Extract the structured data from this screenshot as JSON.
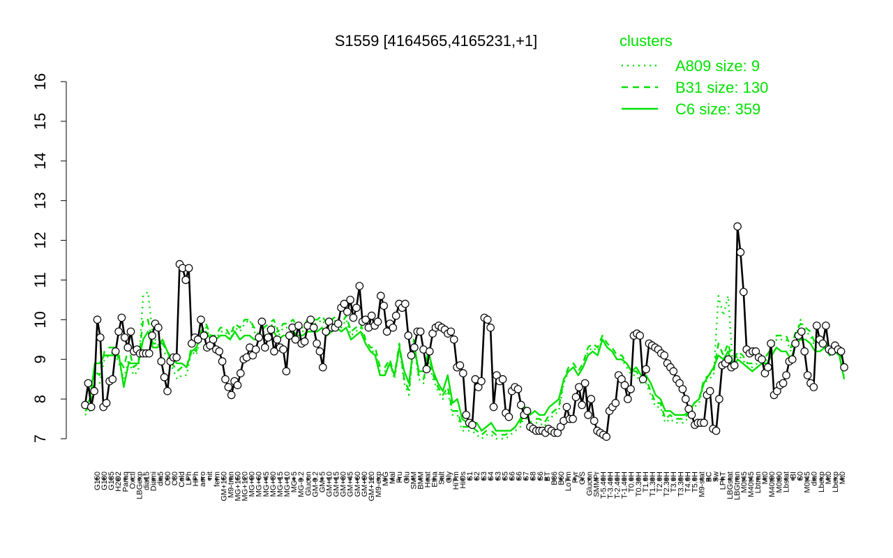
{
  "chart_data": {
    "type": "line",
    "title": "S1559 [4164565,4165231,+1]",
    "xlabel": "",
    "ylabel": "",
    "ylim": [
      7,
      16
    ],
    "yticks": [
      7,
      8,
      9,
      10,
      11,
      12,
      13,
      14,
      15,
      16
    ],
    "grid": false,
    "legend_placement": "top-right",
    "legend": {
      "title": "clusters",
      "entries": [
        {
          "label": "A809 size: 9",
          "style": "dotted"
        },
        {
          "label": "B31 size: 130",
          "style": "dashed"
        },
        {
          "label": "C6 size: 359",
          "style": "solid"
        }
      ]
    },
    "x_tick_labels": [
      "G150",
      "G180",
      "G135",
      "H2O2",
      "Paraq",
      "Oxctl",
      "LBGexp",
      "dia15",
      "Diami",
      "dia5",
      "C90",
      "C30",
      "Cold",
      "LPh",
      "HPh",
      "aero",
      "nit",
      "ferm",
      "GM+150",
      "M9-tran",
      "MG+150",
      "MG+120",
      "MG+90",
      "MG+60",
      "MG+45",
      "MG+30",
      "MG+15",
      "MG+10",
      "MG+5",
      "MG-0.2",
      "Glucon",
      "GM-0.2",
      "GM+5",
      "GM+10",
      "GM+15",
      "GM+30",
      "GM+45",
      "GM+60",
      "GM+90",
      "GM+120",
      "M9-exp",
      "M/G",
      "Mal",
      "Fru",
      "Glu",
      "SMM",
      "BMM",
      "Heat",
      "Etha",
      "Salt",
      "Gly",
      "HiTm",
      "HiOs",
      "S1",
      "S2",
      "S3",
      "S4",
      "S3",
      "S5",
      "S6",
      "S6",
      "S7",
      "S8",
      "S6",
      "BT",
      "B36",
      "B60",
      "LoTm",
      "Pyr",
      "G/S",
      "Glucon",
      "SMMPr",
      "T-5.40H",
      "T-3.40H",
      "T-2.40H",
      "T-1.40H",
      "T0.0H",
      "T0.30H",
      "T1.0H",
      "T1.30H",
      "T2.0H",
      "T2.30H",
      "T3.0H",
      "T3.30H",
      "T4.0H",
      "T5.0H",
      "M9-stat",
      "BC",
      "Sw",
      "LPhT",
      "LBGstat",
      "LBGtran",
      "M0t45",
      "M40t45",
      "Lbtran",
      "Mt0",
      "M40t90",
      "M0t90",
      "Lbstat",
      "BI",
      "S0",
      "M0t45",
      "dia0",
      "Lbexp",
      "Mt0",
      "Lbexp",
      "Mt0"
    ],
    "series": [
      {
        "name": "C6 size: 359",
        "style": "solid",
        "values": [
          7.8,
          8.0,
          8.9,
          8.9,
          9.1,
          9.1,
          9.1,
          9.1,
          8.3,
          8.9,
          8.9,
          8.9,
          9.5,
          9.7,
          9.3,
          9.3,
          9.5,
          9.2,
          9.0,
          8.9,
          8.9,
          8.8,
          9.2,
          9.3,
          9.6,
          9.7,
          9.5,
          9.5,
          9.6,
          9.6,
          9.5,
          9.7,
          9.5,
          9.6,
          9.6,
          9.5,
          9.5,
          9.6,
          9.6,
          9.7,
          9.5,
          9.6,
          9.6,
          9.7,
          9.6,
          9.6,
          9.7,
          9.7,
          9.7,
          9.8,
          9.6,
          9.7,
          9.8,
          9.7,
          9.8,
          9.5,
          9.6,
          9.7,
          9.4,
          9.2,
          9.1,
          8.6,
          8.6,
          8.9,
          8.6,
          9.3,
          8.7,
          8.4,
          9.4,
          8.7,
          8.7,
          9.2,
          8.7,
          8.4,
          8.2,
          8.6,
          7.9,
          8.0,
          7.5,
          7.4,
          7.4,
          7.4,
          7.2,
          7.3,
          7.4,
          7.2,
          7.2,
          7.2,
          7.2,
          7.3,
          7.5,
          7.8,
          7.6,
          7.7,
          7.6,
          7.6,
          7.8,
          7.9,
          8.0,
          8.5,
          8.7,
          8.8,
          8.6,
          8.8,
          9.1,
          9.2,
          9.1,
          9.5,
          9.3,
          9.2,
          9.0,
          9.0,
          8.9,
          8.7,
          8.8,
          8.6,
          8.6,
          8.4,
          8.1,
          8.0,
          7.7,
          7.7,
          7.6,
          7.6,
          7.6,
          7.7,
          7.9,
          8.0,
          8.4,
          8.6,
          8.8,
          9.1,
          9.0,
          9.2,
          8.8,
          9.0,
          8.9,
          8.8,
          8.7,
          8.8,
          8.9,
          8.9,
          9.1,
          9.3,
          9.2,
          9.2,
          9.0,
          9.4,
          9.5,
          9.5,
          9.4,
          9.2,
          9.2,
          9.3,
          9.1,
          9.2,
          9.1,
          8.5
        ]
      },
      {
        "name": "B31 size: 130",
        "style": "dashed",
        "values": [
          7.7,
          7.8,
          8.7,
          8.6,
          9.2,
          9.3,
          9.3,
          9.0,
          8.8,
          9.3,
          8.8,
          8.9,
          10.0,
          10.0,
          9.4,
          9.4,
          9.4,
          9.2,
          8.9,
          8.7,
          8.8,
          8.8,
          9.3,
          9.2,
          9.7,
          9.9,
          9.6,
          9.6,
          9.8,
          9.8,
          9.6,
          9.9,
          9.8,
          10.0,
          10.0,
          9.8,
          9.6,
          9.8,
          9.9,
          10.0,
          9.7,
          9.9,
          9.9,
          10.0,
          9.8,
          9.8,
          10.0,
          10.0,
          10.0,
          10.1,
          9.9,
          10.0,
          10.1,
          9.9,
          10.1,
          9.7,
          9.8,
          9.9,
          9.5,
          9.3,
          9.3,
          8.8,
          8.8,
          9.0,
          8.6,
          9.4,
          8.5,
          8.2,
          9.5,
          8.6,
          8.5,
          9.1,
          8.6,
          8.3,
          8.1,
          8.3,
          7.7,
          7.7,
          7.3,
          7.3,
          7.3,
          7.2,
          7.1,
          7.2,
          7.2,
          7.1,
          7.1,
          7.1,
          7.2,
          7.3,
          7.4,
          7.7,
          7.4,
          7.5,
          7.5,
          7.4,
          7.6,
          7.7,
          7.8,
          8.5,
          8.8,
          8.9,
          8.7,
          8.9,
          9.3,
          9.4,
          9.3,
          9.6,
          9.4,
          9.3,
          9.1,
          9.1,
          8.9,
          8.7,
          8.7,
          8.5,
          8.5,
          8.2,
          7.9,
          7.9,
          7.5,
          7.6,
          7.5,
          7.5,
          7.5,
          7.7,
          7.9,
          8.0,
          8.5,
          8.6,
          8.7,
          9.4,
          9.1,
          9.4,
          8.9,
          9.2,
          9.1,
          8.9,
          8.9,
          9.0,
          9.0,
          9.1,
          9.3,
          9.6,
          9.6,
          9.6,
          9.3,
          9.7,
          9.9,
          9.8,
          9.7,
          9.4,
          9.4,
          9.5,
          9.2,
          9.3,
          9.2,
          8.7
        ]
      },
      {
        "name": "A809 size: 9",
        "style": "dotted",
        "values": [
          7.6,
          7.7,
          8.4,
          8.4,
          9.0,
          9.1,
          9.2,
          8.9,
          8.5,
          9.0,
          8.6,
          8.7,
          10.6,
          10.7,
          9.6,
          9.4,
          9.2,
          9.1,
          8.8,
          8.5,
          8.6,
          8.6,
          9.2,
          9.1,
          9.6,
          9.8,
          9.5,
          9.5,
          9.7,
          9.7,
          9.5,
          9.8,
          9.7,
          9.9,
          10.0,
          9.7,
          9.5,
          9.7,
          9.8,
          9.9,
          9.6,
          9.8,
          9.8,
          9.9,
          9.7,
          9.7,
          9.9,
          9.9,
          9.9,
          10.0,
          9.8,
          9.9,
          10.0,
          9.8,
          10.0,
          9.6,
          9.7,
          9.8,
          9.4,
          9.2,
          9.2,
          8.7,
          8.7,
          8.9,
          8.5,
          9.3,
          8.4,
          8.1,
          9.4,
          8.5,
          8.4,
          9.0,
          8.5,
          8.2,
          8.0,
          8.2,
          7.6,
          7.6,
          7.2,
          7.2,
          7.2,
          7.1,
          7.0,
          7.1,
          7.1,
          7.0,
          7.0,
          7.0,
          7.1,
          7.2,
          7.3,
          7.6,
          7.3,
          7.4,
          7.4,
          7.3,
          7.5,
          7.6,
          7.7,
          8.4,
          8.7,
          8.8,
          8.6,
          8.8,
          9.2,
          9.3,
          9.2,
          9.5,
          9.3,
          9.2,
          9.0,
          9.0,
          8.8,
          8.6,
          8.6,
          8.4,
          8.4,
          8.1,
          7.8,
          7.8,
          7.4,
          7.5,
          7.4,
          7.4,
          7.4,
          7.6,
          7.8,
          7.9,
          8.4,
          8.5,
          8.6,
          10.6,
          10.1,
          10.6,
          8.8,
          9.1,
          9.0,
          8.8,
          8.8,
          8.9,
          8.9,
          9.0,
          9.2,
          9.5,
          9.5,
          9.5,
          9.2,
          9.6,
          10.0,
          9.7,
          9.6,
          9.3,
          9.3,
          9.4,
          9.1,
          9.2,
          9.1,
          8.6
        ]
      },
      {
        "name": "",
        "style": "black-line-points",
        "values": [
          7.85,
          8.4,
          7.8,
          8.2,
          10.0,
          9.55,
          7.8,
          7.9,
          8.45,
          8.5,
          9.2,
          9.7,
          10.05,
          9.55,
          9.3,
          9.7,
          9.2,
          9.25,
          9.15,
          9.15,
          9.15,
          9.15,
          9.6,
          9.9,
          9.8,
          8.95,
          8.55,
          8.2,
          8.95,
          9.05,
          9.05,
          11.4,
          11.3,
          11.0,
          11.3,
          9.4,
          9.55,
          9.5,
          10.0,
          9.6,
          9.3,
          9.35,
          9.5,
          9.25,
          9.2,
          8.95,
          8.5,
          8.3,
          8.1,
          8.45,
          8.35,
          8.65,
          9.0,
          9.05,
          9.3,
          9.1,
          9.25,
          9.55,
          9.95,
          9.3,
          9.55,
          9.75,
          9.2,
          9.5,
          9.3,
          9.25,
          8.7,
          9.6,
          9.8,
          9.5,
          9.85,
          9.4,
          9.45,
          9.85,
          10.0,
          9.8,
          9.4,
          9.2,
          8.8,
          9.7,
          9.95,
          9.8,
          9.8,
          9.9,
          10.3,
          10.4,
          10.2,
          10.5,
          10.05,
          10.3,
          10.85,
          9.95,
          10.0,
          9.8,
          10.1,
          9.85,
          9.95,
          10.6,
          10.35,
          9.7,
          9.9,
          9.8,
          10.1,
          10.4,
          10.3,
          10.4,
          9.6,
          9.1,
          9.3,
          9.7,
          9.7,
          9.25,
          8.75,
          9.2,
          9.65,
          9.8,
          9.85,
          9.8,
          9.75,
          9.65,
          9.7,
          9.5,
          8.8,
          8.85,
          8.65,
          7.6,
          7.4,
          7.35,
          8.5,
          8.3,
          8.45,
          10.05,
          10.0,
          9.8,
          7.8,
          8.6,
          8.45,
          8.5,
          7.65,
          7.55,
          8.2,
          8.3,
          8.25,
          7.85,
          7.6,
          7.7,
          7.3,
          7.25,
          7.2,
          7.2,
          7.2,
          7.15,
          7.25,
          7.2,
          7.15,
          7.15,
          7.3,
          7.45,
          7.8,
          7.5,
          7.5,
          8.05,
          8.3,
          7.85,
          8.4,
          7.6,
          8.0,
          7.45,
          7.2,
          7.15,
          7.1,
          7.05,
          7.7,
          7.8,
          7.9,
          8.6,
          8.5,
          8.35,
          8.0,
          8.25,
          9.6,
          9.65,
          9.6,
          8.5,
          8.75,
          9.4,
          9.35,
          9.3,
          9.25,
          9.15,
          9.1,
          8.9,
          8.8,
          8.7,
          8.5,
          8.4,
          8.25,
          8.0,
          7.75,
          7.6,
          7.35,
          7.4,
          7.4,
          7.4,
          8.1,
          8.2,
          7.25,
          7.2,
          8.0,
          8.85,
          8.9,
          9.0,
          8.8,
          8.85,
          12.35,
          11.7,
          10.7,
          9.25,
          9.15,
          9.2,
          9.2,
          9.05,
          9.0,
          8.65,
          8.8,
          9.4,
          8.1,
          8.2,
          8.35,
          8.4,
          8.6,
          8.95,
          9.0,
          9.4,
          9.6,
          9.7,
          9.2,
          8.6,
          8.4,
          8.3,
          9.85,
          9.5,
          9.4,
          9.85,
          9.25,
          9.2,
          9.35,
          9.25,
          9.2,
          8.8
        ]
      }
    ]
  }
}
